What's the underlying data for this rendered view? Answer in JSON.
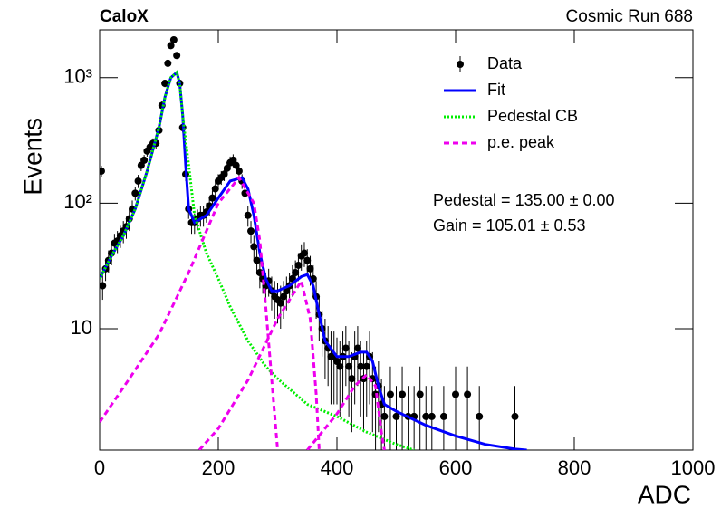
{
  "chart_data": {
    "type": "scatter",
    "title": "CaloX",
    "subtitle": "Cosmic Run 688",
    "xlabel": "ADC",
    "ylabel": "Events",
    "log_y": true,
    "xlim": [
      0,
      1000
    ],
    "ylim": [
      1.08,
      2400
    ],
    "xticks": [
      0,
      200,
      400,
      600,
      800,
      1000
    ],
    "yticks": [
      10,
      {
        "value": 100,
        "label": "10²"
      },
      {
        "value": 1000,
        "label": "10³"
      }
    ],
    "legend": "upper right",
    "annotations": [
      "Pedestal = 135.00 ± 0.00",
      "Gain = 105.01 ± 0.53"
    ],
    "series": [
      {
        "name": "Data",
        "color": "#000000",
        "mark": "errorbar",
        "x": [
          3,
          5,
          10,
          15,
          20,
          25,
          30,
          35,
          40,
          45,
          50,
          55,
          60,
          65,
          70,
          75,
          80,
          85,
          90,
          95,
          100,
          105,
          110,
          115,
          120,
          125,
          130,
          135,
          140,
          145,
          150,
          155,
          160,
          165,
          170,
          175,
          180,
          185,
          190,
          195,
          200,
          205,
          210,
          215,
          220,
          225,
          230,
          235,
          240,
          245,
          250,
          255,
          260,
          265,
          270,
          275,
          280,
          285,
          290,
          295,
          300,
          305,
          310,
          315,
          320,
          325,
          330,
          335,
          340,
          345,
          350,
          355,
          360,
          365,
          370,
          375,
          380,
          385,
          390,
          395,
          400,
          405,
          410,
          415,
          420,
          425,
          430,
          435,
          440,
          445,
          450,
          455,
          460,
          465,
          470,
          475,
          480,
          490,
          500,
          510,
          520,
          530,
          540,
          550,
          560,
          580,
          600,
          620,
          640,
          700
        ],
        "values": [
          180,
          22,
          30,
          35,
          40,
          48,
          50,
          55,
          60,
          65,
          75,
          90,
          120,
          150,
          200,
          220,
          260,
          280,
          300,
          300,
          380,
          600,
          900,
          1300,
          1800,
          2000,
          1500,
          900,
          400,
          170,
          90,
          70,
          70,
          75,
          80,
          80,
          85,
          95,
          110,
          130,
          150,
          160,
          170,
          190,
          210,
          220,
          200,
          180,
          150,
          120,
          80,
          60,
          45,
          35,
          28,
          25,
          22,
          24,
          20,
          18,
          17,
          16,
          18,
          20,
          22,
          25,
          28,
          32,
          38,
          40,
          35,
          30,
          25,
          18,
          13,
          10,
          8,
          7,
          6,
          6,
          5.5,
          5,
          6,
          7,
          5,
          4,
          6,
          7,
          5,
          4,
          5,
          6,
          4,
          3,
          3.5,
          2.5,
          2,
          3,
          2,
          3,
          2,
          2,
          3,
          2,
          2,
          2,
          3,
          3,
          2,
          2
        ],
        "errors": [
          18,
          5,
          6,
          7,
          8,
          9,
          10,
          11,
          12,
          13,
          15,
          15,
          15,
          18,
          20,
          22,
          25,
          25,
          28,
          28,
          35,
          50,
          60,
          80,
          100,
          110,
          90,
          60,
          35,
          20,
          15,
          13,
          13,
          14,
          15,
          15,
          15,
          16,
          16,
          18,
          20,
          20,
          20,
          22,
          25,
          25,
          24,
          22,
          20,
          18,
          15,
          12,
          10,
          8,
          7,
          6,
          6,
          6,
          6,
          6,
          6,
          6,
          6,
          6,
          6,
          7,
          7,
          8,
          9,
          9,
          8,
          8,
          7,
          6,
          5,
          4,
          4,
          3.5,
          3.5,
          3.5,
          3,
          3,
          3.5,
          3.5,
          3,
          2.5,
          3.5,
          3.5,
          3,
          2.5,
          3,
          3.5,
          2.5,
          2,
          2,
          1.5,
          1.5,
          2,
          1.5,
          2,
          1.5,
          1.5,
          2,
          1.5,
          1.5,
          1.5,
          2,
          2,
          1.5,
          1.5
        ]
      },
      {
        "name": "Fit",
        "color": "#0000ff",
        "mark": "solid",
        "x": [
          0,
          20,
          40,
          60,
          80,
          100,
          110,
          120,
          130,
          135,
          140,
          145,
          150,
          160,
          170,
          180,
          200,
          220,
          240,
          250,
          260,
          270,
          280,
          290,
          300,
          320,
          340,
          350,
          360,
          370,
          380,
          400,
          420,
          440,
          450,
          460,
          470,
          480,
          500,
          550,
          600,
          650,
          700,
          720
        ],
        "values": [
          25,
          38,
          55,
          90,
          180,
          400,
          700,
          1000,
          1100,
          900,
          500,
          200,
          90,
          70,
          75,
          80,
          110,
          150,
          160,
          130,
          80,
          40,
          25,
          20,
          20,
          22,
          26,
          27,
          22,
          13,
          8,
          6,
          6,
          6.5,
          6.5,
          5.5,
          3.5,
          2.5,
          2.2,
          1.7,
          1.4,
          1.2,
          1.1,
          1.08
        ]
      },
      {
        "name": "Pedestal CB",
        "color": "#00ee00",
        "mark": "dotted",
        "x": [
          0,
          20,
          40,
          60,
          80,
          100,
          110,
          120,
          130,
          135,
          140,
          150,
          160,
          180,
          200,
          220,
          250,
          280,
          300,
          350,
          400,
          450,
          500,
          530
        ],
        "values": [
          25,
          38,
          55,
          90,
          180,
          400,
          700,
          1000,
          1100,
          900,
          500,
          200,
          80,
          40,
          25,
          15,
          8,
          5,
          4,
          2.5,
          2,
          1.5,
          1.2,
          1.08
        ]
      },
      {
        "name": "p.e. peak",
        "color": "#ee00ee",
        "mark": "dashed",
        "x": [
          0,
          50,
          100,
          150,
          200,
          235,
          260,
          270,
          280,
          290,
          300,
          null,
          168,
          200,
          250,
          300,
          340,
          355,
          365,
          370,
          null,
          350,
          400,
          430,
          450,
          465,
          475,
          480
        ],
        "values": [
          1.8,
          4,
          9,
          28,
          100,
          160,
          100,
          50,
          15,
          4,
          1.08,
          null,
          1.08,
          1.6,
          3.9,
          12,
          24,
          12,
          3,
          1.08,
          null,
          1.08,
          2.1,
          3.5,
          4.3,
          3.5,
          1.5,
          1.08
        ]
      }
    ]
  }
}
